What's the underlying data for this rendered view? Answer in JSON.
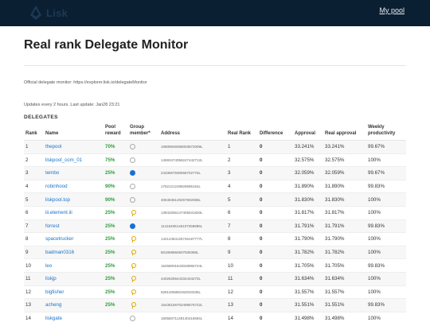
{
  "brand": {
    "name": "Lisk"
  },
  "nav": {
    "my_pool": "My pool"
  },
  "page": {
    "title": "Real rank Delegate Monitor",
    "official_note": "Official delegate monitor: https://explorer.lisk.io/delegateMonitor",
    "update_note": "Updates every 2 hours. Last update: Jan28 23:21",
    "section_label": "DELEGATES"
  },
  "table": {
    "headers": {
      "rank": "Rank",
      "name": "Name",
      "pool_reward": "Pool reward",
      "group_member": "Group member*",
      "address": "Address",
      "real_rank": "Real Rank",
      "difference": "Difference",
      "approval": "Approval",
      "real_approval": "Real approval",
      "weekly_productivity": "Weekly productivity"
    },
    "rows": [
      {
        "rank": "1",
        "name": "thepool",
        "pool": "70%",
        "group": "none",
        "address": "10809949368003872009L",
        "real_rank": "1",
        "diff": "0",
        "approval": "33.241%",
        "real_approval": "33.241%",
        "productivity": "99.67%"
      },
      {
        "rank": "2",
        "name": "liskpool_com_01",
        "pool": "75%",
        "group": "none",
        "address": "14593474056247442712L",
        "real_rank": "2",
        "diff": "0",
        "approval": "32.575%",
        "real_approval": "32.575%",
        "productivity": "100%"
      },
      {
        "rank": "3",
        "name": "tembo",
        "pool": "25%",
        "group": "blue",
        "address": "2433657930558702776L",
        "real_rank": "3",
        "diff": "0",
        "approval": "32.059%",
        "real_approval": "32.059%",
        "productivity": "99.67%"
      },
      {
        "rank": "4",
        "name": "robinhood",
        "pool": "90%",
        "group": "none",
        "address": "1762121249826596154L",
        "real_rank": "4",
        "diff": "0",
        "approval": "31.890%",
        "real_approval": "31.890%",
        "productivity": "99.83%"
      },
      {
        "rank": "5",
        "name": "liskpool.top",
        "pool": "90%",
        "group": "none",
        "address": "4054636149257692068L",
        "real_rank": "5",
        "diff": "0",
        "approval": "31.830%",
        "real_approval": "31.830%",
        "productivity": "100%"
      },
      {
        "rank": "6",
        "name": "iii.element.iii",
        "pool": "25%",
        "group": "key",
        "address": "13943256147405531820L",
        "real_rank": "6",
        "diff": "0",
        "approval": "31.817%",
        "real_approval": "31.817%",
        "productivity": "100%"
      },
      {
        "rank": "7",
        "name": "forrest",
        "pool": "25%",
        "group": "blue",
        "address": "11416406146107258985L",
        "real_rank": "7",
        "diff": "0",
        "approval": "31.791%",
        "real_approval": "31.791%",
        "productivity": "99.83%"
      },
      {
        "rank": "8",
        "name": "spacetrucker",
        "pool": "25%",
        "group": "key",
        "address": "14212484126746187777L",
        "real_rank": "8",
        "diff": "0",
        "approval": "31.790%",
        "real_approval": "31.790%",
        "productivity": "100%"
      },
      {
        "rank": "9",
        "name": "badman0316",
        "pool": "25%",
        "group": "key",
        "address": "801959860607939388L",
        "real_rank": "9",
        "diff": "0",
        "approval": "31.782%",
        "real_approval": "31.782%",
        "productivity": "100%"
      },
      {
        "rank": "10",
        "name": "leo",
        "pool": "25%",
        "group": "key",
        "address": "15458001843048965724L",
        "real_rank": "10",
        "diff": "0",
        "approval": "31.705%",
        "real_approval": "31.705%",
        "productivity": "99.83%"
      },
      {
        "rank": "11",
        "name": "liskjp",
        "pool": "25%",
        "group": "key",
        "address": "4402625644334434270L",
        "real_rank": "11",
        "diff": "0",
        "approval": "31.634%",
        "real_approval": "31.634%",
        "productivity": "100%"
      },
      {
        "rank": "12",
        "name": "bigfisher",
        "pool": "25%",
        "group": "key",
        "address": "6281405850162033335L",
        "real_rank": "12",
        "diff": "0",
        "approval": "31.557%",
        "real_approval": "31.557%",
        "productivity": "100%"
      },
      {
        "rank": "13",
        "name": "acheng",
        "pool": "25%",
        "group": "key",
        "address": "15435156702499576722L",
        "real_rank": "13",
        "diff": "0",
        "approval": "31.551%",
        "real_approval": "31.551%",
        "productivity": "99.83%"
      },
      {
        "rank": "14",
        "name": "liskgate",
        "pool": "",
        "group": "none",
        "address": "16056071149140416594L",
        "real_rank": "14",
        "diff": "0",
        "approval": "31.498%",
        "real_approval": "31.498%",
        "productivity": "100%"
      }
    ]
  }
}
